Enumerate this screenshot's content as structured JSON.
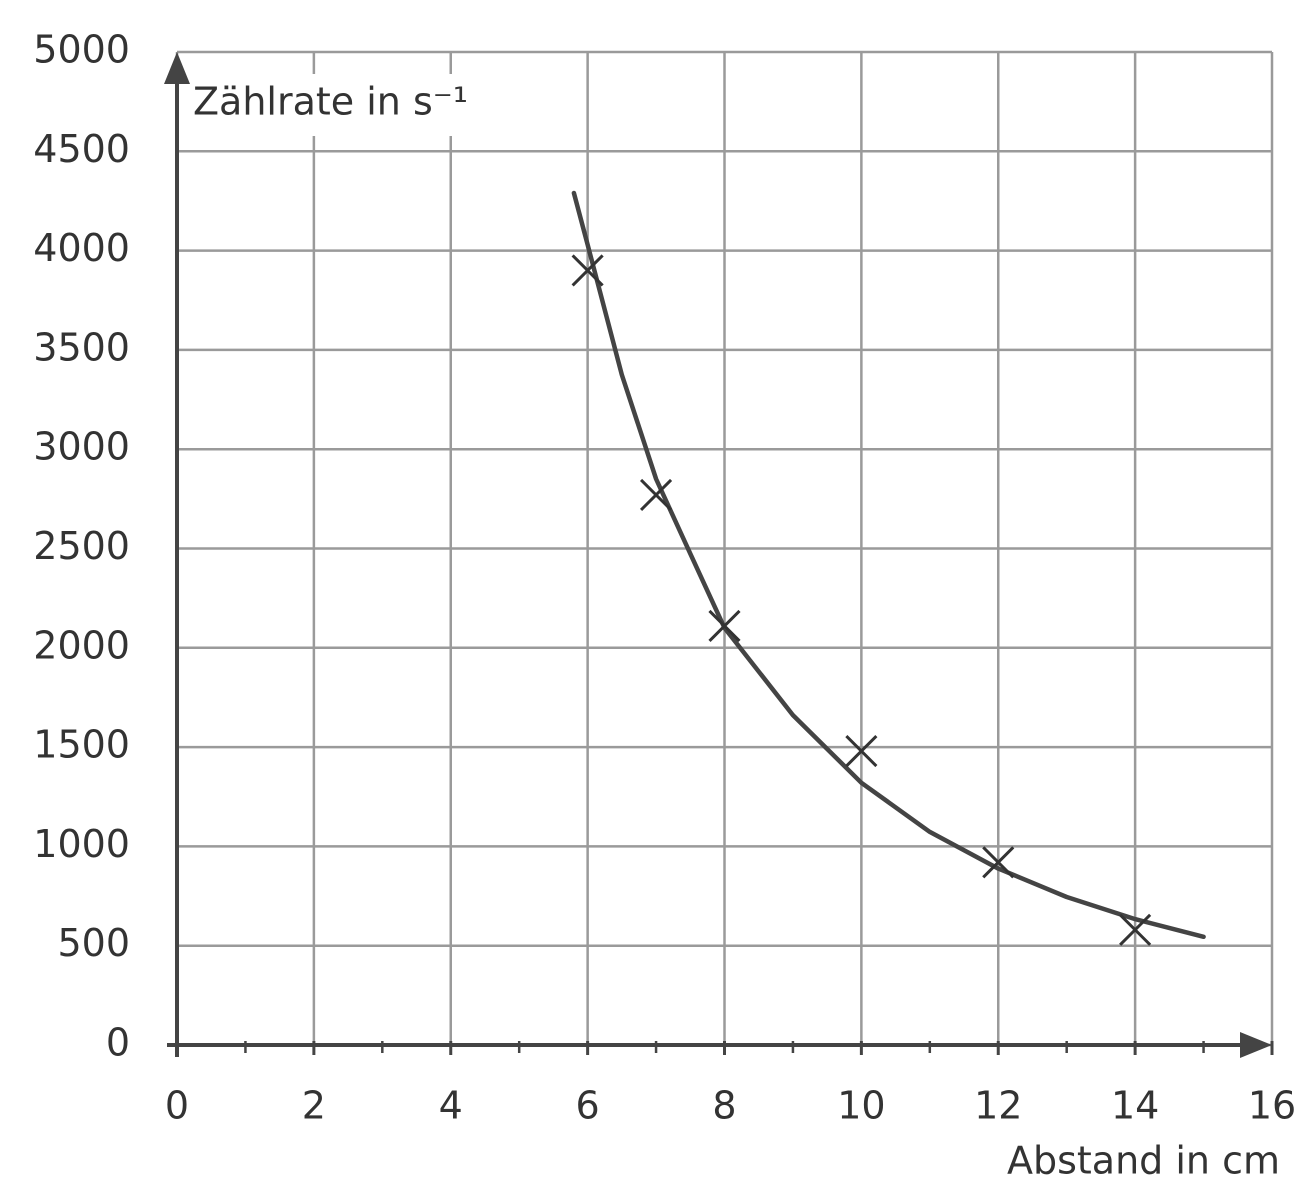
{
  "chart_data": {
    "type": "scatter",
    "x_label": "Abstand in cm",
    "y_label": "Zählrate in s⁻¹",
    "x": [
      6,
      7,
      8,
      10,
      12,
      14
    ],
    "values": [
      3900,
      2770,
      2110,
      1480,
      920,
      580
    ],
    "color": "#333333",
    "curve": {
      "type": "line",
      "color": "#444444",
      "x": [
        5.8,
        6,
        6.5,
        7,
        7.5,
        8,
        9,
        10,
        11,
        12,
        13,
        14,
        15
      ],
      "values": [
        4290,
        4030,
        3375,
        2850,
        2474,
        2100,
        1661,
        1320,
        1073,
        888,
        745,
        634,
        545
      ]
    },
    "xlim": [
      0,
      16
    ],
    "ylim": [
      0,
      5000
    ],
    "xticks": [
      0,
      2,
      4,
      6,
      8,
      10,
      12,
      14,
      16
    ],
    "xminor_ticks": [
      1,
      3,
      5,
      7,
      9,
      11,
      13,
      15
    ],
    "yticks": [
      0,
      500,
      1000,
      1500,
      2000,
      2500,
      3000,
      3500,
      4000,
      4500,
      5000
    ],
    "grid": true
  }
}
